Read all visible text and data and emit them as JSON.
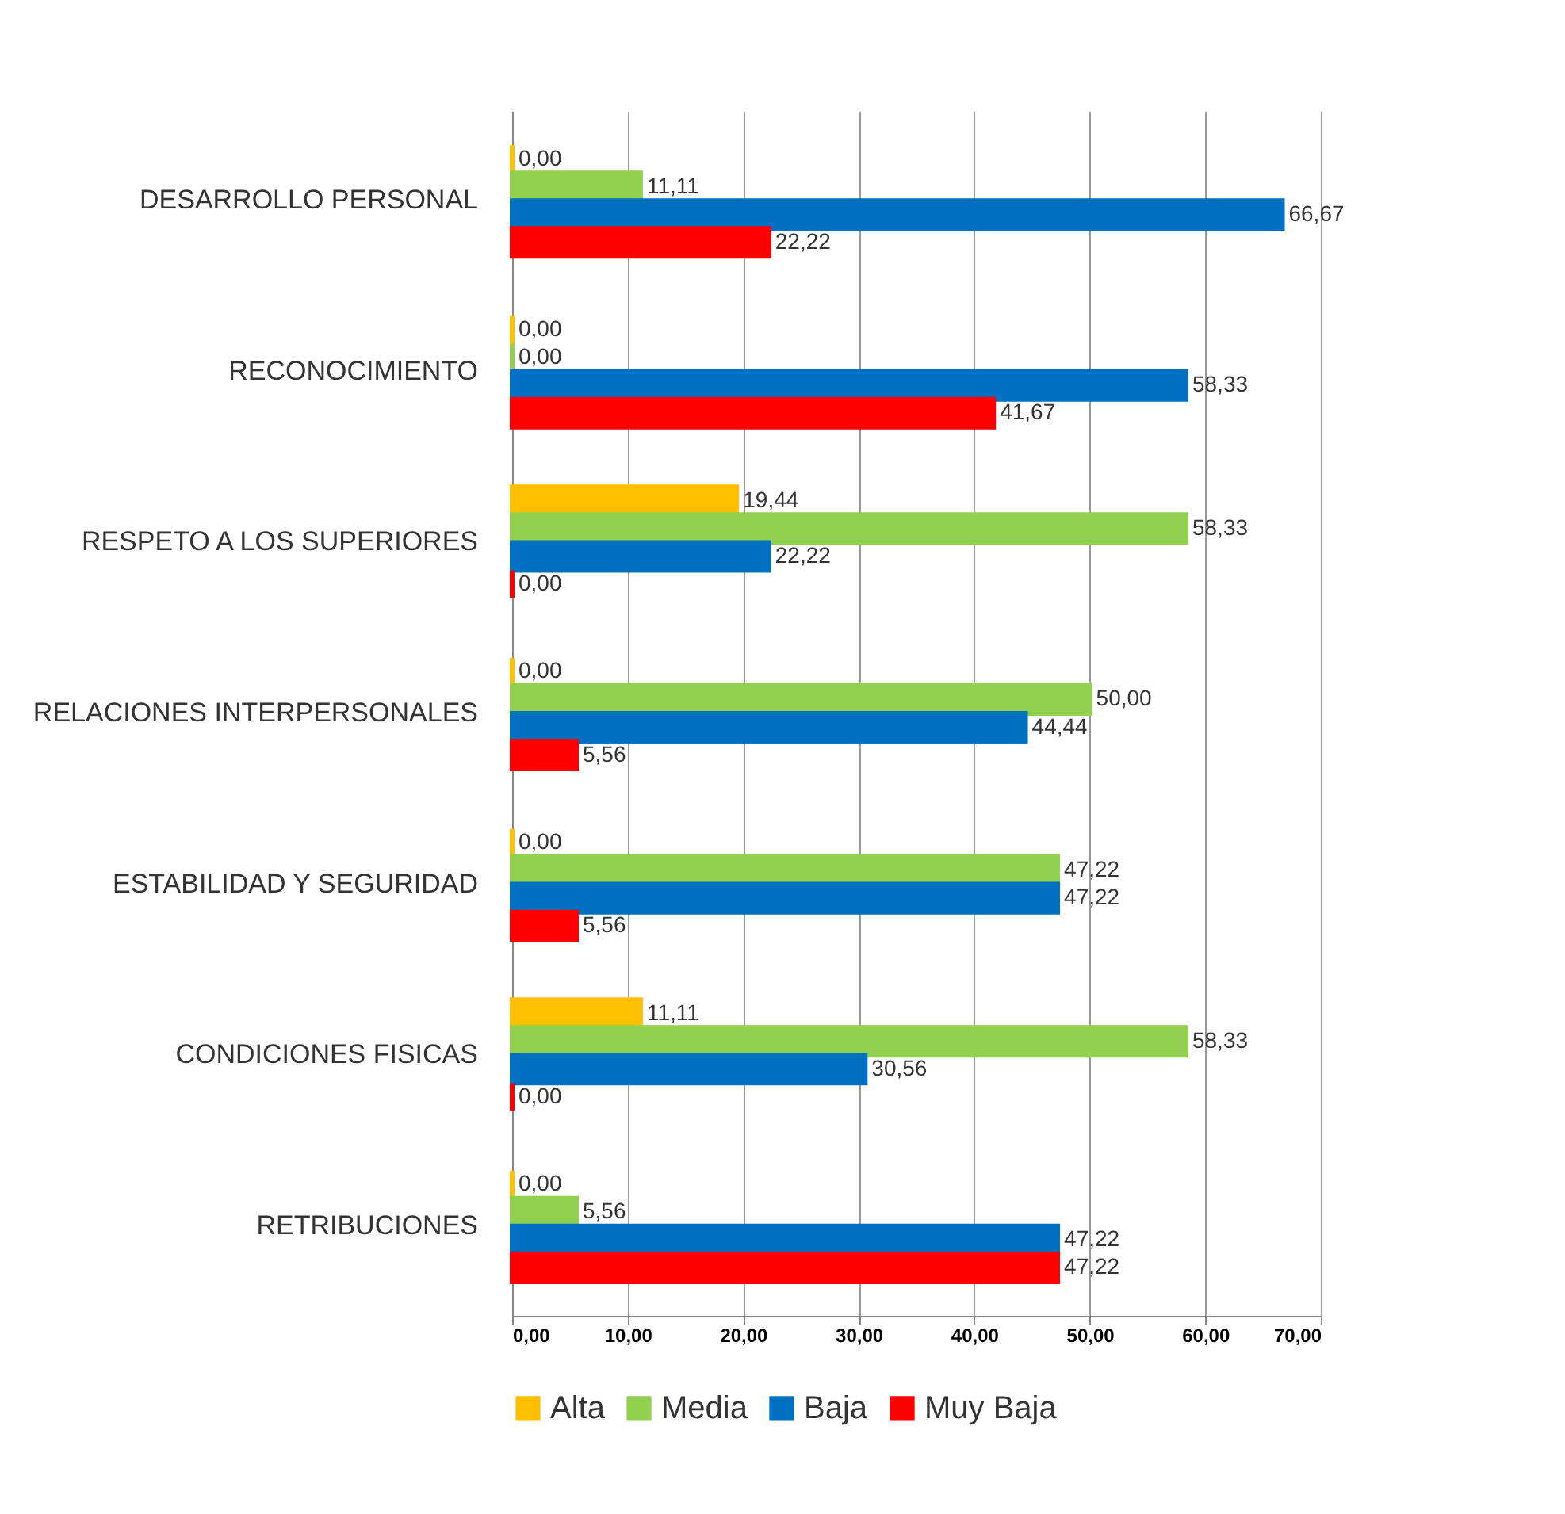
{
  "chart_data": {
    "type": "bar",
    "orientation": "horizontal",
    "categories": [
      "DESARROLLO PERSONAL",
      "RECONOCIMIENTO",
      "RESPETO A LOS SUPERIORES",
      "RELACIONES INTERPERSONALES",
      "ESTABILIDAD Y SEGURIDAD",
      "CONDICIONES FISICAS",
      "RETRIBUCIONES"
    ],
    "series": [
      {
        "name": "Alta",
        "color": "#ffc000",
        "values": [
          0,
          0,
          19.44,
          0,
          0,
          11.11,
          0
        ],
        "value_labels": [
          "0,00",
          "0,00",
          "19,44",
          "0,00",
          "0,00",
          "11,11",
          "0,00"
        ]
      },
      {
        "name": "Media",
        "color": "#92d050",
        "values": [
          11.11,
          0,
          58.33,
          50,
          47.22,
          58.33,
          5.56
        ],
        "value_labels": [
          "11,11",
          "0,00",
          "58,33",
          "50,00",
          "47,22",
          "58,33",
          "5,56"
        ]
      },
      {
        "name": "Baja",
        "color": "#0070c0",
        "values": [
          66.67,
          58.33,
          22.22,
          44.44,
          47.22,
          30.56,
          47.22
        ],
        "value_labels": [
          "66,67",
          "58,33",
          "22,22",
          "44,44",
          "47,22",
          "30,56",
          "47,22"
        ]
      },
      {
        "name": "Muy Baja",
        "color": "#ff0000",
        "values": [
          22.22,
          41.67,
          0,
          5.56,
          5.56,
          0,
          47.22
        ],
        "value_labels": [
          "22,22",
          "41,67",
          "0,00",
          "5,56",
          "5,56",
          "0,00",
          "47,22"
        ]
      }
    ],
    "xlim": [
      0,
      70
    ],
    "xticks": [
      {
        "value": 0,
        "label": "0,00"
      },
      {
        "value": 10,
        "label": "10,00"
      },
      {
        "value": 20,
        "label": "20,00"
      },
      {
        "value": 30,
        "label": "30,00"
      },
      {
        "value": 40,
        "label": "40,00"
      },
      {
        "value": 50,
        "label": "50,00"
      },
      {
        "value": 60,
        "label": "60,00"
      },
      {
        "value": 70,
        "label": "70,00"
      }
    ],
    "grid": "x",
    "legend": "bottom"
  }
}
